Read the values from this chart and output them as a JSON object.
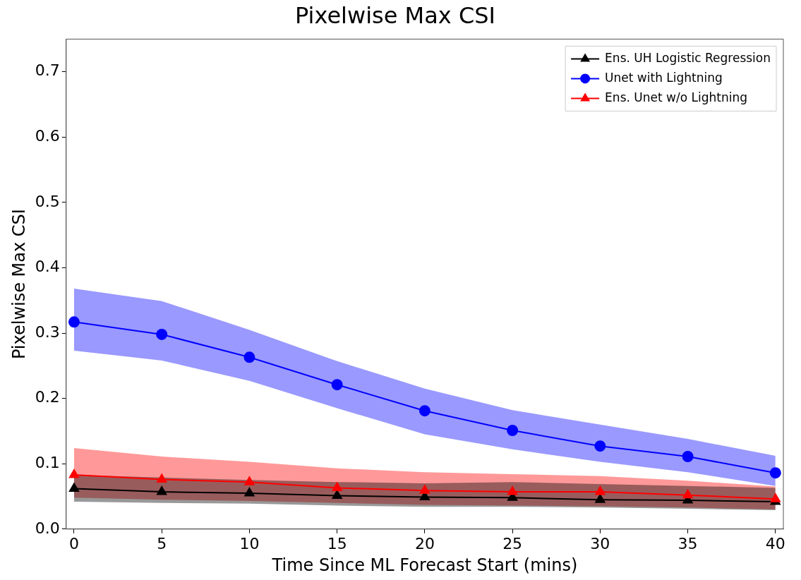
{
  "chart_data": {
    "type": "line",
    "title": "Pixelwise Max CSI",
    "xlabel": "Time Since ML Forecast Start (mins)",
    "ylabel": "Pixelwise Max CSI",
    "x": [
      0,
      5,
      10,
      15,
      20,
      25,
      30,
      35,
      40
    ],
    "series": [
      {
        "name": "Ens. UH Logistic Regression",
        "color": "#000000",
        "marker": "triangle",
        "values": [
          0.062,
          0.057,
          0.055,
          0.051,
          0.049,
          0.048,
          0.045,
          0.044,
          0.042
        ],
        "lower": [
          0.042,
          0.04,
          0.039,
          0.036,
          0.034,
          0.034,
          0.033,
          0.031,
          0.029
        ],
        "upper": [
          0.083,
          0.079,
          0.075,
          0.072,
          0.07,
          0.072,
          0.069,
          0.066,
          0.063
        ]
      },
      {
        "name": "Unet with Lightning",
        "color": "#0000ff",
        "marker": "circle",
        "values": [
          0.317,
          0.298,
          0.263,
          0.221,
          0.181,
          0.151,
          0.127,
          0.111,
          0.086
        ],
        "lower": [
          0.273,
          0.258,
          0.227,
          0.185,
          0.145,
          0.122,
          0.103,
          0.087,
          0.066
        ],
        "upper": [
          0.368,
          0.349,
          0.305,
          0.257,
          0.215,
          0.182,
          0.16,
          0.138,
          0.112
        ]
      },
      {
        "name": "Ens. Unet w/o Lightning",
        "color": "#ff0000",
        "marker": "triangle",
        "values": [
          0.083,
          0.076,
          0.072,
          0.063,
          0.059,
          0.057,
          0.057,
          0.052,
          0.046
        ],
        "lower": [
          0.048,
          0.045,
          0.043,
          0.04,
          0.037,
          0.036,
          0.035,
          0.033,
          0.03
        ],
        "upper": [
          0.124,
          0.111,
          0.103,
          0.093,
          0.087,
          0.084,
          0.081,
          0.074,
          0.065
        ]
      }
    ],
    "xlim": [
      -0.45,
      40.45
    ],
    "xticks": [
      0,
      5,
      10,
      15,
      20,
      25,
      30,
      35,
      40
    ],
    "ylim": [
      0,
      0.75
    ],
    "yticks": [
      {
        "value": 0,
        "label": "0.0"
      },
      0.1,
      0.2,
      0.3,
      0.4,
      0.5,
      0.6,
      0.7
    ],
    "grid": false,
    "legend": "top right",
    "line_style": "solid"
  }
}
